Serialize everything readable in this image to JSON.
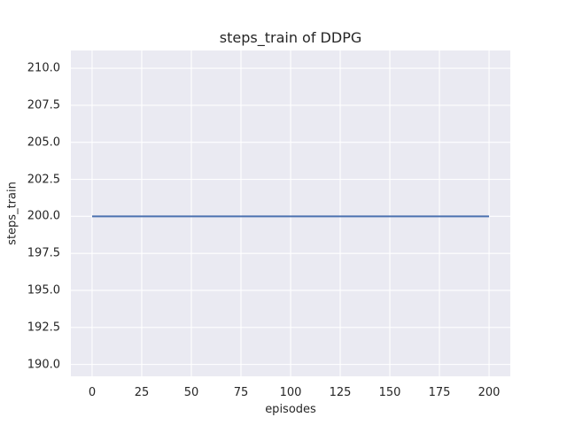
{
  "chart_data": {
    "type": "line",
    "title": "steps_train of DDPG",
    "xlabel": "episodes",
    "ylabel": "steps_train",
    "x_ticks": [
      0,
      25,
      50,
      75,
      100,
      125,
      150,
      175,
      200
    ],
    "x_tick_labels": [
      "0",
      "25",
      "50",
      "75",
      "100",
      "125",
      "150",
      "175",
      "200"
    ],
    "y_ticks": [
      190.0,
      192.5,
      195.0,
      197.5,
      200.0,
      202.5,
      205.0,
      207.5,
      210.0
    ],
    "y_tick_labels": [
      "190.0",
      "192.5",
      "195.0",
      "197.5",
      "200.0",
      "202.5",
      "205.0",
      "207.5",
      "210.0"
    ],
    "xlim": [
      -10.7,
      210.7
    ],
    "ylim": [
      189.2,
      211.2
    ],
    "grid": true,
    "legend": false,
    "series": [
      {
        "x": [
          0,
          200
        ],
        "y": [
          200,
          200
        ],
        "color": "#4c72b0",
        "line_width": 2
      }
    ],
    "colors": {
      "plot_background": "#eaeaf2",
      "grid": "#ffffff",
      "text": "#262626",
      "figure_background": "#ffffff"
    }
  }
}
